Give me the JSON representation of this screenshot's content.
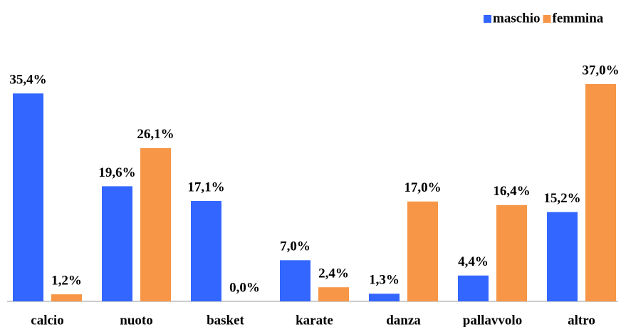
{
  "chart_data": {
    "type": "bar",
    "categories": [
      "calcio",
      "nuoto",
      "basket",
      "karate",
      "danza",
      "pallavvolo",
      "altro"
    ],
    "series": [
      {
        "name": "maschio",
        "color": "#3366ff",
        "values": [
          35.4,
          19.6,
          17.1,
          7.0,
          1.3,
          4.4,
          15.2
        ],
        "value_labels": [
          "35,4%",
          "19,6%",
          "17,1%",
          "7,0%",
          "1,3%",
          "4,4%",
          "15,2%"
        ]
      },
      {
        "name": "femmina",
        "color": "#f79646",
        "values": [
          1.2,
          26.1,
          0.0,
          2.4,
          17.0,
          16.4,
          37.0
        ],
        "value_labels": [
          "1,2%",
          "26,1%",
          "0,0%",
          "2,4%",
          "17,0%",
          "16,4%",
          "37,0%"
        ]
      }
    ],
    "legend": "top-right"
  }
}
